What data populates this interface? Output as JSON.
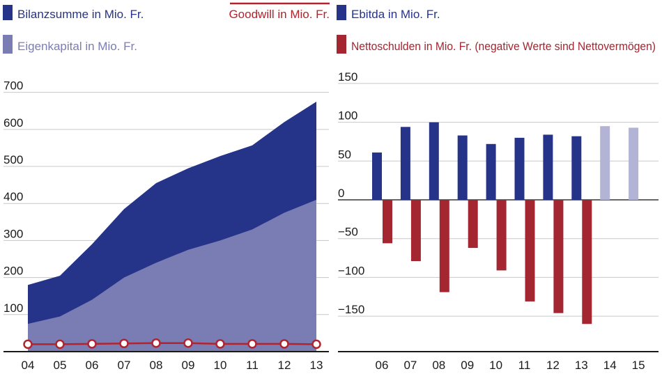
{
  "colors": {
    "bilanz": "#253389",
    "eigenkapital": "#7a7cb4",
    "goodwill": "#b0242e",
    "ebitda": "#253389",
    "ebitda_forecast": "#b3b3d6",
    "nettoschulden": "#a32630",
    "grid": "#c8c8c8"
  },
  "chart_data": [
    {
      "type": "area",
      "title": "",
      "legend": {
        "bilanzsumme": "Bilanzsumme in Mio. Fr.",
        "eigenkapital": "Eigenkapital in Mio. Fr.",
        "goodwill": "Goodwill in Mio. Fr."
      },
      "categories": [
        "04",
        "05",
        "06",
        "07",
        "08",
        "09",
        "10",
        "11",
        "12",
        "13"
      ],
      "yticks": [
        "100",
        "200",
        "300",
        "400",
        "500",
        "600",
        "700"
      ],
      "ylim": [
        0,
        720
      ],
      "series": [
        {
          "name": "Bilanzsumme in Mio. Fr.",
          "type": "area",
          "values": [
            180,
            205,
            290,
            385,
            455,
            495,
            528,
            557,
            620,
            675
          ]
        },
        {
          "name": "Eigenkapital in Mio. Fr.",
          "type": "area",
          "values": [
            75,
            95,
            140,
            200,
            240,
            275,
            300,
            330,
            375,
            410
          ]
        },
        {
          "name": "Goodwill in Mio. Fr.",
          "type": "line",
          "values": [
            20,
            20,
            21,
            22,
            23,
            23,
            21,
            21,
            21,
            20
          ]
        }
      ]
    },
    {
      "type": "bar",
      "title": "",
      "legend": {
        "ebitda": "Ebitda in Mio. Fr.",
        "nettoschulden": "Nettoschulden in Mio. Fr. (negative Werte sind Nettovermögen)"
      },
      "categories": [
        "06",
        "07",
        "08",
        "09",
        "10",
        "11",
        "12",
        "13",
        "14",
        "15"
      ],
      "yticks": [
        "150",
        "100",
        "50",
        "0",
        "−50",
        "−100",
        "−150"
      ],
      "ylim": [
        -180,
        160
      ],
      "series": [
        {
          "name": "Ebitda in Mio. Fr.",
          "values": [
            61,
            94,
            100,
            83,
            72,
            80,
            84,
            82,
            95,
            93
          ],
          "forecast": [
            false,
            false,
            false,
            false,
            false,
            false,
            false,
            false,
            true,
            true
          ]
        },
        {
          "name": "Nettoschulden in Mio. Fr. (negative Werte sind Nettovermögen)",
          "values": [
            -56,
            -79,
            -119,
            -62,
            -91,
            -131,
            -146,
            -160,
            null,
            null
          ]
        }
      ]
    }
  ]
}
